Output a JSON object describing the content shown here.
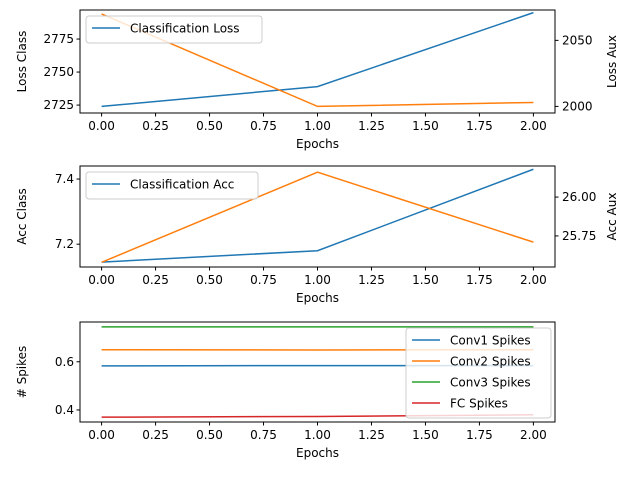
{
  "chart_data": [
    {
      "type": "line",
      "xlabel": "Epochs",
      "ylabel": "Loss Class",
      "ylabel_right": "Loss Aux",
      "x": [
        0,
        1,
        2
      ],
      "xlim": [
        -0.1,
        2.1
      ],
      "xticks": [
        "0.00",
        "0.25",
        "0.50",
        "0.75",
        "1.00",
        "1.25",
        "1.50",
        "1.75",
        "2.00"
      ],
      "ylim": [
        2719,
        2797
      ],
      "yticks": [
        "2725",
        "2750",
        "2775"
      ],
      "ylim_right": [
        1995,
        2073
      ],
      "yticks_right": [
        "2000",
        "2050"
      ],
      "series": [
        {
          "name": "Classification Loss",
          "axis": "left",
          "color": "#1f77b4",
          "values": [
            2724,
            2739,
            2795
          ]
        },
        {
          "axis": "right",
          "color": "#ff7f0e",
          "values": [
            2070,
            2000,
            2003
          ]
        }
      ],
      "legend": "top-left",
      "grid": false
    },
    {
      "type": "line",
      "xlabel": "Epochs",
      "ylabel": "Acc Class",
      "ylabel_right": "Acc Aux",
      "x": [
        0,
        1,
        2
      ],
      "xlim": [
        -0.1,
        2.1
      ],
      "xticks": [
        "0.00",
        "0.25",
        "0.50",
        "0.75",
        "1.00",
        "1.25",
        "1.50",
        "1.75",
        "2.00"
      ],
      "ylim": [
        7.13,
        7.44
      ],
      "yticks": [
        "7.2",
        "7.4"
      ],
      "ylim_right": [
        25.55,
        26.2
      ],
      "yticks_right": [
        "25.75",
        "26.00"
      ],
      "series": [
        {
          "name": "Classification Acc",
          "axis": "left",
          "color": "#1f77b4",
          "values": [
            7.145,
            7.18,
            7.43
          ]
        },
        {
          "axis": "right",
          "color": "#ff7f0e",
          "values": [
            25.58,
            26.16,
            25.71
          ]
        }
      ],
      "legend": "top-left",
      "grid": false
    },
    {
      "type": "line",
      "xlabel": "Epochs",
      "ylabel": "# Spikes",
      "x": [
        0,
        1,
        2
      ],
      "xlim": [
        -0.1,
        2.1
      ],
      "xticks": [
        "0.00",
        "0.25",
        "0.50",
        "0.75",
        "1.00",
        "1.25",
        "1.50",
        "1.75",
        "2.00"
      ],
      "ylim": [
        0.35,
        0.765
      ],
      "yticks": [
        "0.4",
        "0.6"
      ],
      "series": [
        {
          "name": "Conv1 Spikes",
          "color": "#1f77b4",
          "values": [
            0.583,
            0.584,
            0.584
          ]
        },
        {
          "name": "Conv2 Spikes",
          "color": "#ff7f0e",
          "values": [
            0.65,
            0.649,
            0.65
          ]
        },
        {
          "name": "Conv3 Spikes",
          "color": "#2ca02c",
          "values": [
            0.745,
            0.745,
            0.745
          ]
        },
        {
          "name": "FC Spikes",
          "color": "#d62728",
          "values": [
            0.37,
            0.373,
            0.38
          ]
        }
      ],
      "legend": "top-right",
      "grid": false
    }
  ]
}
